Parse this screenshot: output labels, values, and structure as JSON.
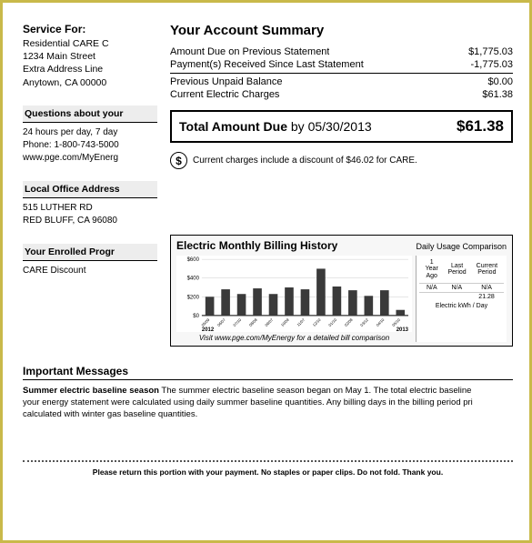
{
  "service": {
    "title": "Service For:",
    "line1": "Residential CARE C",
    "line2": "1234 Main Street",
    "line3": "Extra Address Line",
    "line4": "Anytown, CA 00000"
  },
  "questions": {
    "head": "Questions about your",
    "l1": "24 hours per day, 7 day",
    "l2": "Phone: 1-800-743-5000",
    "l3": "www.pge.com/MyEnerg"
  },
  "office": {
    "head": "Local Office Address",
    "l1": "515 LUTHER RD",
    "l2": "RED BLUFF, CA 96080"
  },
  "programs": {
    "head": "Your Enrolled Progr",
    "l1": "CARE Discount"
  },
  "summary": {
    "title": "Your Account Summary",
    "rows": [
      {
        "label": "Amount Due on Previous Statement",
        "value": "$1,775.03"
      },
      {
        "label": "Payment(s) Received Since Last Statement",
        "value": "-1,775.03"
      },
      {
        "label": "Previous Unpaid Balance",
        "value": "$0.00"
      },
      {
        "label": "Current Electric Charges",
        "value": "$61.38"
      }
    ],
    "total_label": "Total Amount Due",
    "total_by": "by 05/30/2013",
    "total_value": "$61.38",
    "note": "Current charges include a discount of $46.02 for CARE."
  },
  "history": {
    "title": "Electric Monthly Billing History",
    "sub": "Daily Usage Comparison",
    "y_ticks": [
      "$600",
      "$400",
      "$200",
      "$0"
    ],
    "y_max": 600,
    "bar_color": "#3a3a3a",
    "bg_color": "#ffffff",
    "grid_color": "#cccccc",
    "start_year": "2012",
    "end_year": "2013",
    "months": [
      "05/09",
      "06/07",
      "07/10",
      "08/08",
      "09/07",
      "10/09",
      "11/07",
      "12/10",
      "01/10",
      "02/08",
      "03/12",
      "04/10",
      "05/10"
    ],
    "values": [
      200,
      280,
      230,
      290,
      230,
      300,
      280,
      500,
      310,
      270,
      210,
      270,
      60
    ],
    "caption": "Visit www.pge.com/MyEnergy for a detailed bill comparison",
    "compare": {
      "headers": [
        "1 Year Ago",
        "Last Period",
        "Current Period"
      ],
      "row_na": [
        "N/A",
        "N/A",
        "N/A"
      ],
      "kwh_row": [
        "",
        "",
        "21.28"
      ],
      "foot": "Electric kWh  /  Day"
    }
  },
  "important": {
    "title": "Important Messages",
    "bold": "Summer electric baseline season",
    "text1": "  The summer electric baseline season began on May 1. The total electric baseline",
    "text2": "your energy statement were calculated using daily summer baseline quantities. Any billing days in the billing period pri",
    "text3": "calculated with winter gas baseline quantities."
  },
  "return_note": "Please return this portion with your payment. No staples or paper clips. Do not fold. Thank you."
}
